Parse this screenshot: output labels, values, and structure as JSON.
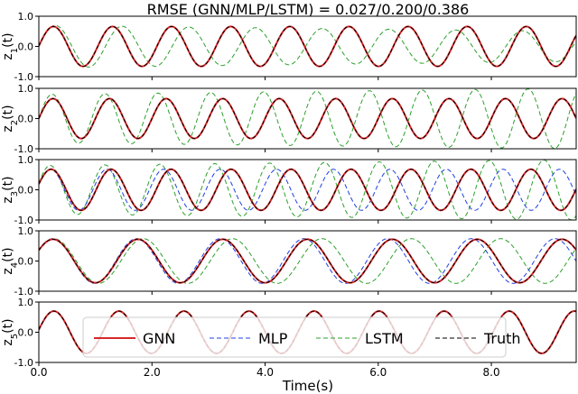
{
  "chart_data": {
    "type": "line",
    "title": "RMSE (GNN/MLP/LSTM) = 0.027/0.200/0.386",
    "xlabel": "Time(s)",
    "xlim": [
      0,
      9.5
    ],
    "xticks": [
      "0.0",
      "2.0",
      "4.0",
      "6.0",
      "8.0"
    ],
    "ylim": [
      -1.0,
      1.0
    ],
    "yticks": [
      "1.0",
      "0.0",
      "-1.0"
    ],
    "legend_position": "bottom (over the last panel)",
    "series_styles": [
      {
        "name": "GNN",
        "color": "#d62728",
        "dash": "solid"
      },
      {
        "name": "MLP",
        "color": "#1f3fe0",
        "dash": "dashed"
      },
      {
        "name": "LSTM",
        "color": "#2ca02c",
        "dash": "dashed"
      },
      {
        "name": "Truth",
        "color": "#000000",
        "dash": "dashed"
      }
    ],
    "panels": [
      {
        "ylabel": "z1(t)",
        "series": {
          "Truth": {
            "period": 1.045,
            "phase0": 0.02,
            "amp": 0.66
          },
          "GNN": {
            "period": 1.045,
            "phase0": 0.02,
            "amp": 0.66
          },
          "MLP": {
            "period": 1.045,
            "phase0": 0.02,
            "amp": 0.66
          },
          "LSTM": {
            "period": 1.18,
            "phase0": 0.02,
            "amp": 0.7,
            "amp_end": 0.5
          }
        }
      },
      {
        "ylabel": "z2(t)",
        "series": {
          "Truth": {
            "period": 1.0,
            "phase0": 0.0,
            "amp": 0.66
          },
          "GNN": {
            "period": 1.0,
            "phase0": 0.0,
            "amp": 0.66
          },
          "MLP": {
            "period": 1.0,
            "phase0": 0.0,
            "amp": 0.66
          },
          "LSTM": {
            "period": 0.935,
            "phase0": 0.0,
            "amp": 0.8,
            "amp_end": 1.0
          }
        }
      },
      {
        "ylabel": "z3(t)",
        "series": {
          "Truth": {
            "period": 1.06,
            "phase0": 0.28,
            "amp": 0.68
          },
          "GNN": {
            "period": 1.06,
            "phase0": 0.28,
            "amp": 0.68
          },
          "MLP": {
            "period": 1.0,
            "phase0": 0.28,
            "amp": 0.68
          },
          "LSTM": {
            "period": 0.97,
            "phase0": 0.28,
            "amp": 0.8,
            "amp_end": 1.0
          }
        }
      },
      {
        "ylabel": "z4(t)",
        "series": {
          "Truth": {
            "period": 1.5,
            "phase0": 0.52,
            "amp": 0.72
          },
          "GNN": {
            "period": 1.5,
            "phase0": 0.52,
            "amp": 0.72
          },
          "MLP": {
            "period": 1.48,
            "phase0": 0.52,
            "amp": 0.74
          },
          "LSTM": {
            "period": 1.58,
            "phase0": 0.52,
            "amp": 0.74
          }
        }
      },
      {
        "ylabel": "z5(t)",
        "series": {
          "Truth": {
            "period": 1.15,
            "phase0": 0.12,
            "amp": 0.7
          },
          "GNN": {
            "period": 1.15,
            "phase0": 0.12,
            "amp": 0.7
          },
          "MLP": {
            "period": 1.15,
            "phase0": 0.12,
            "amp": 0.7
          },
          "LSTM": {
            "period": 1.15,
            "phase0": 0.12,
            "amp": 0.7
          }
        }
      }
    ]
  }
}
